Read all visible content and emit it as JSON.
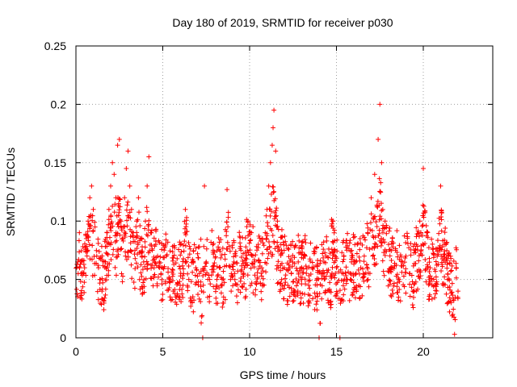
{
  "chart_data": {
    "type": "scatter",
    "title": "Day 180 of 2019, SRMTID for receiver p030",
    "xlabel": "GPS time / hours",
    "ylabel": "SRMTID / TECUs",
    "xlim": [
      0,
      24
    ],
    "ylim": [
      0,
      0.25
    ],
    "x_ticks": [
      0,
      5,
      10,
      15,
      20
    ],
    "x_tick_labels": [
      "0",
      "5",
      "10",
      "15",
      "20"
    ],
    "y_ticks": [
      0,
      0.05,
      0.1,
      0.15,
      0.2,
      0.25
    ],
    "y_tick_labels": [
      "0",
      "0.05",
      "0.1",
      "0.15",
      "0.2",
      "0.25"
    ],
    "grid": true,
    "marker": "+",
    "series": [
      {
        "name": "SRMTID",
        "color": "#ff0000",
        "x_range": [
          0.0,
          22.0
        ],
        "points": [
          [
            0.1,
            0.065
          ],
          [
            0.2,
            0.09
          ],
          [
            0.3,
            0.055
          ],
          [
            0.4,
            0.078
          ],
          [
            0.5,
            0.06
          ],
          [
            0.6,
            0.085
          ],
          [
            0.7,
            0.1
          ],
          [
            0.8,
            0.12
          ],
          [
            0.9,
            0.13
          ],
          [
            1.0,
            0.11
          ],
          [
            1.1,
            0.095
          ],
          [
            1.2,
            0.07
          ],
          [
            1.3,
            0.06
          ],
          [
            1.4,
            0.05
          ],
          [
            1.5,
            0.04
          ],
          [
            1.6,
            0.032
          ],
          [
            1.7,
            0.065
          ],
          [
            1.8,
            0.09
          ],
          [
            1.9,
            0.11
          ],
          [
            2.0,
            0.13
          ],
          [
            2.1,
            0.15
          ],
          [
            2.2,
            0.14
          ],
          [
            2.3,
            0.12
          ],
          [
            2.4,
            0.165
          ],
          [
            2.5,
            0.17
          ],
          [
            2.6,
            0.1
          ],
          [
            2.7,
            0.085
          ],
          [
            2.8,
            0.12
          ],
          [
            2.9,
            0.145
          ],
          [
            3.0,
            0.16
          ],
          [
            3.1,
            0.13
          ],
          [
            3.2,
            0.11
          ],
          [
            3.3,
            0.09
          ],
          [
            3.4,
            0.075
          ],
          [
            3.5,
            0.1
          ],
          [
            3.6,
            0.12
          ],
          [
            3.7,
            0.085
          ],
          [
            3.8,
            0.07
          ],
          [
            3.9,
            0.065
          ],
          [
            4.0,
            0.1
          ],
          [
            4.1,
            0.13
          ],
          [
            4.2,
            0.155
          ],
          [
            4.3,
            0.09
          ],
          [
            4.4,
            0.075
          ],
          [
            4.5,
            0.06
          ],
          [
            4.6,
            0.08
          ],
          [
            4.7,
            0.07
          ],
          [
            4.8,
            0.065
          ],
          [
            4.9,
            0.055
          ],
          [
            5.0,
            0.06
          ],
          [
            5.2,
            0.07
          ],
          [
            5.4,
            0.05
          ],
          [
            5.6,
            0.04
          ],
          [
            5.8,
            0.035
          ],
          [
            6.0,
            0.045
          ],
          [
            6.2,
            0.055
          ],
          [
            6.3,
            0.11
          ],
          [
            6.5,
            0.05
          ],
          [
            6.7,
            0.03
          ],
          [
            6.9,
            0.06
          ],
          [
            7.1,
            0.055
          ],
          [
            7.3,
            0.0
          ],
          [
            7.4,
            0.13
          ],
          [
            7.5,
            0.065
          ],
          [
            7.7,
            0.05
          ],
          [
            7.9,
            0.075
          ],
          [
            8.1,
            0.045
          ],
          [
            8.3,
            0.06
          ],
          [
            8.5,
            0.035
          ],
          [
            8.7,
            0.127
          ],
          [
            8.9,
            0.05
          ],
          [
            9.1,
            0.065
          ],
          [
            9.3,
            0.03
          ],
          [
            9.5,
            0.075
          ],
          [
            9.7,
            0.06
          ],
          [
            9.9,
            0.1
          ],
          [
            10.1,
            0.09
          ],
          [
            10.3,
            0.065
          ],
          [
            10.5,
            0.08
          ],
          [
            10.7,
            0.06
          ],
          [
            10.9,
            0.09
          ],
          [
            11.0,
            0.11
          ],
          [
            11.1,
            0.13
          ],
          [
            11.2,
            0.15
          ],
          [
            11.3,
            0.165
          ],
          [
            11.35,
            0.18
          ],
          [
            11.4,
            0.195
          ],
          [
            11.5,
            0.16
          ],
          [
            11.6,
            0.1
          ],
          [
            11.8,
            0.08
          ],
          [
            12.0,
            0.06
          ],
          [
            12.2,
            0.045
          ],
          [
            12.4,
            0.055
          ],
          [
            12.6,
            0.04
          ],
          [
            12.8,
            0.065
          ],
          [
            13.0,
            0.05
          ],
          [
            13.2,
            0.07
          ],
          [
            13.4,
            0.045
          ],
          [
            13.6,
            0.06
          ],
          [
            13.8,
            0.035
          ],
          [
            14.0,
            0.0
          ],
          [
            14.2,
            0.055
          ],
          [
            14.4,
            0.07
          ],
          [
            14.6,
            0.04
          ],
          [
            14.8,
            0.1
          ],
          [
            15.0,
            0.06
          ],
          [
            15.2,
            0.0
          ],
          [
            15.4,
            0.055
          ],
          [
            15.6,
            0.075
          ],
          [
            15.8,
            0.05
          ],
          [
            16.0,
            0.065
          ],
          [
            16.2,
            0.08
          ],
          [
            16.4,
            0.06
          ],
          [
            16.6,
            0.07
          ],
          [
            16.8,
            0.09
          ],
          [
            17.0,
            0.12
          ],
          [
            17.2,
            0.14
          ],
          [
            17.4,
            0.17
          ],
          [
            17.5,
            0.2
          ],
          [
            17.6,
            0.15
          ],
          [
            17.8,
            0.1
          ],
          [
            18.0,
            0.08
          ],
          [
            18.2,
            0.06
          ],
          [
            18.4,
            0.075
          ],
          [
            18.6,
            0.05
          ],
          [
            18.8,
            0.065
          ],
          [
            19.0,
            0.07
          ],
          [
            19.2,
            0.055
          ],
          [
            19.4,
            0.04
          ],
          [
            19.6,
            0.08
          ],
          [
            19.8,
            0.1
          ],
          [
            20.0,
            0.145
          ],
          [
            20.2,
            0.09
          ],
          [
            20.4,
            0.06
          ],
          [
            20.6,
            0.05
          ],
          [
            20.8,
            0.07
          ],
          [
            21.0,
            0.13
          ],
          [
            21.2,
            0.08
          ],
          [
            21.4,
            0.05
          ],
          [
            21.6,
            0.03
          ],
          [
            21.7,
            0.02
          ],
          [
            21.8,
            0.003
          ],
          [
            21.9,
            0.06
          ],
          [
            22.0,
            0.04
          ]
        ]
      }
    ]
  }
}
